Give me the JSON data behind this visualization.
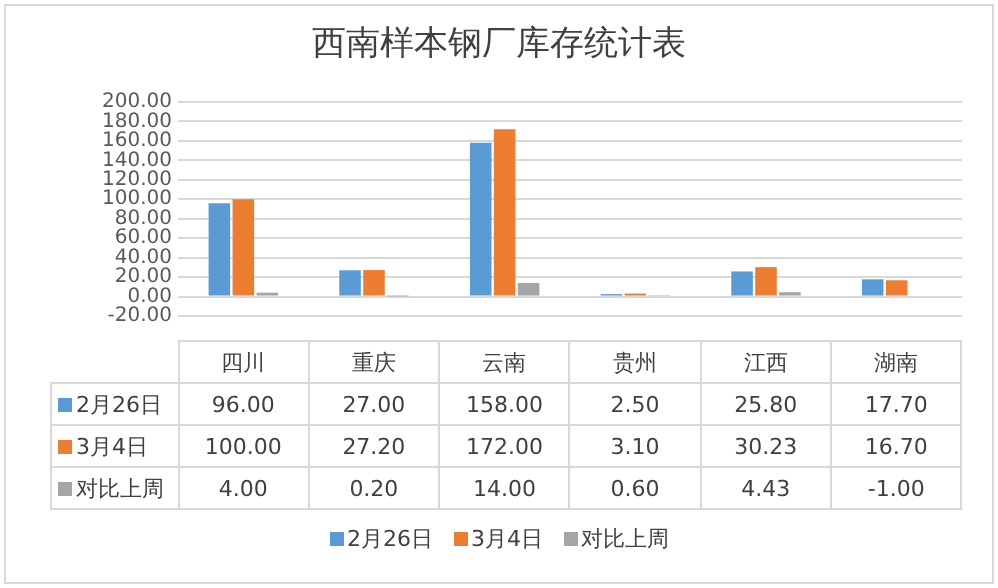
{
  "chart_data": {
    "type": "bar",
    "title": "西南样本钢厂库存统计表",
    "categories": [
      "四川",
      "重庆",
      "云南",
      "贵州",
      "江西",
      "湖南"
    ],
    "series": [
      {
        "name": "2月26日",
        "color": "#5b9bd5",
        "values": [
          96.0,
          27.0,
          158.0,
          2.5,
          25.8,
          17.7
        ],
        "value_labels": [
          "96.00",
          "27.00",
          "158.00",
          "2.50",
          "25.80",
          "17.70"
        ]
      },
      {
        "name": "3月4日",
        "color": "#ed7d31",
        "values": [
          100.0,
          27.2,
          172.0,
          3.1,
          30.23,
          16.7
        ],
        "value_labels": [
          "100.00",
          "27.20",
          "172.00",
          "3.10",
          "30.23",
          "16.70"
        ]
      },
      {
        "name": "对比上周",
        "color": "#a5a5a5",
        "values": [
          4.0,
          0.2,
          14.0,
          0.6,
          4.43,
          -1.0
        ],
        "value_labels": [
          "4.00",
          "0.20",
          "14.00",
          "0.60",
          "4.43",
          "-1.00"
        ]
      }
    ],
    "ylim": [
      -20,
      200
    ],
    "yticks": [
      {
        "value": -20,
        "label": "-20.00"
      },
      {
        "value": 0,
        "label": "0.00"
      },
      {
        "value": 20,
        "label": "20.00"
      },
      {
        "value": 40,
        "label": "40.00"
      },
      {
        "value": 60,
        "label": "60.00"
      },
      {
        "value": 80,
        "label": "80.00"
      },
      {
        "value": 100,
        "label": "100.00"
      },
      {
        "value": 120,
        "label": "120.00"
      },
      {
        "value": 140,
        "label": "140.00"
      },
      {
        "value": 160,
        "label": "160.00"
      },
      {
        "value": 180,
        "label": "180.00"
      },
      {
        "value": 200,
        "label": "200.00"
      }
    ],
    "grid": "y",
    "legend": "bottom"
  }
}
